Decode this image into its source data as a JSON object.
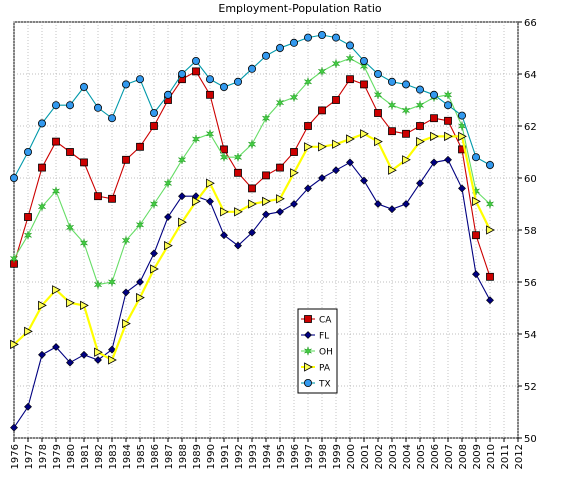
{
  "chart_data": {
    "type": "line",
    "title": "Employment-Population Ratio",
    "xlabel": "",
    "ylabel": "",
    "xlim": [
      1976,
      2012
    ],
    "ylim": [
      50,
      66
    ],
    "y_ticks": [
      50,
      52,
      54,
      56,
      58,
      60,
      62,
      64,
      66
    ],
    "x_ticks": [
      1976,
      1977,
      1978,
      1979,
      1980,
      1981,
      1982,
      1983,
      1984,
      1985,
      1986,
      1987,
      1988,
      1989,
      1990,
      1991,
      1992,
      1993,
      1994,
      1995,
      1996,
      1997,
      1998,
      1999,
      2000,
      2001,
      2002,
      2003,
      2004,
      2005,
      2006,
      2007,
      2008,
      2009,
      2010,
      2011,
      2012
    ],
    "grid": true,
    "legend_position": "center-bottom",
    "x": [
      1976,
      1977,
      1978,
      1979,
      1980,
      1981,
      1982,
      1983,
      1984,
      1985,
      1986,
      1987,
      1988,
      1989,
      1990,
      1991,
      1992,
      1993,
      1994,
      1995,
      1996,
      1997,
      1998,
      1999,
      2000,
      2001,
      2002,
      2003,
      2004,
      2005,
      2006,
      2007,
      2008,
      2009,
      2010
    ],
    "series": [
      {
        "name": "CA",
        "color": "#cc0000",
        "marker": "square",
        "marker_fill": "#cc0000",
        "values": [
          56.7,
          58.5,
          60.4,
          61.4,
          61.0,
          60.6,
          59.3,
          59.2,
          60.7,
          61.2,
          62.0,
          63.0,
          63.8,
          64.1,
          63.2,
          61.1,
          60.2,
          59.6,
          60.1,
          60.4,
          61.0,
          62.0,
          62.6,
          63.0,
          63.8,
          63.6,
          62.5,
          61.8,
          61.7,
          62.0,
          62.3,
          62.2,
          61.1,
          57.8,
          56.2
        ]
      },
      {
        "name": "FL",
        "color": "#000080",
        "marker": "diamond",
        "marker_fill": "#000080",
        "values": [
          50.4,
          51.2,
          53.2,
          53.5,
          52.9,
          53.2,
          53.0,
          53.4,
          55.6,
          56.0,
          57.1,
          58.5,
          59.3,
          59.3,
          59.1,
          57.8,
          57.4,
          57.9,
          58.6,
          58.7,
          59.0,
          59.6,
          60.0,
          60.3,
          60.6,
          59.9,
          59.0,
          58.8,
          59.0,
          59.8,
          60.6,
          60.7,
          59.6,
          56.3,
          55.3
        ]
      },
      {
        "name": "OH",
        "color": "#66dd66",
        "marker": "star",
        "marker_fill": "#44cc44",
        "values": [
          56.9,
          57.8,
          58.9,
          59.5,
          58.1,
          57.5,
          55.9,
          56.0,
          57.6,
          58.2,
          59.0,
          59.8,
          60.7,
          61.5,
          61.7,
          60.8,
          60.8,
          61.3,
          62.3,
          62.9,
          63.1,
          63.7,
          64.1,
          64.4,
          64.6,
          64.3,
          63.2,
          62.8,
          62.6,
          62.8,
          63.1,
          63.2,
          62.0,
          59.5,
          59.0
        ]
      },
      {
        "name": "PA",
        "color": "#ffff00",
        "marker": "triangle-right",
        "marker_fill": "#ffff55",
        "values": [
          53.6,
          54.1,
          55.1,
          55.7,
          55.2,
          55.1,
          53.3,
          53.0,
          54.4,
          55.4,
          56.5,
          57.4,
          58.3,
          59.1,
          59.8,
          58.7,
          58.7,
          59.0,
          59.1,
          59.2,
          60.2,
          61.2,
          61.2,
          61.3,
          61.5,
          61.7,
          61.4,
          60.3,
          60.7,
          61.4,
          61.6,
          61.6,
          61.6,
          59.1,
          58.0
        ]
      },
      {
        "name": "TX",
        "color": "#0099aa",
        "marker": "circle",
        "marker_fill": "#3399ee",
        "values": [
          60.0,
          61.0,
          62.1,
          62.8,
          62.8,
          63.5,
          62.7,
          62.3,
          63.6,
          63.8,
          62.5,
          63.2,
          64.0,
          64.5,
          63.8,
          63.5,
          63.7,
          64.2,
          64.7,
          65.0,
          65.2,
          65.4,
          65.5,
          65.4,
          65.1,
          64.5,
          64.0,
          63.7,
          63.6,
          63.4,
          63.2,
          62.8,
          62.4,
          60.8,
          60.5
        ]
      }
    ]
  }
}
